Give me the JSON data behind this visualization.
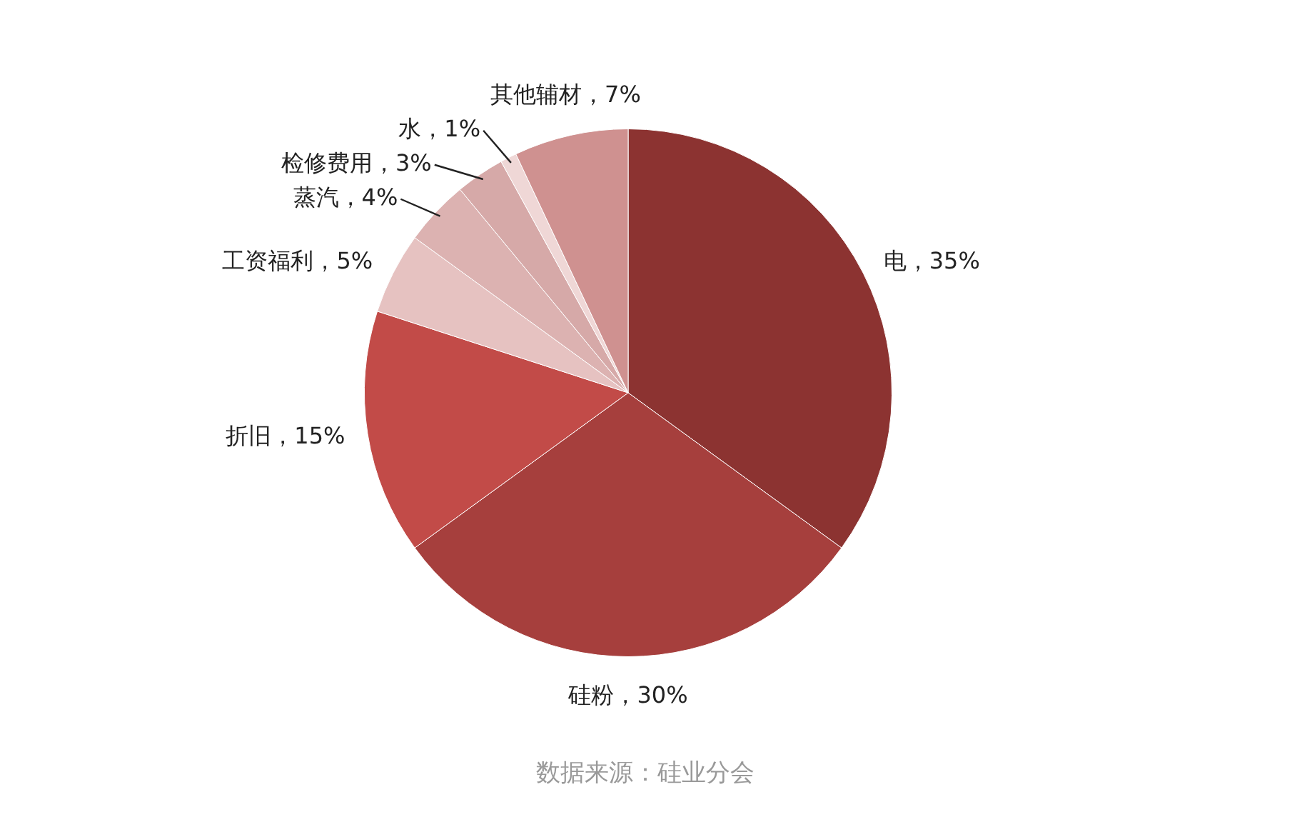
{
  "chart_data": {
    "type": "pie",
    "categories": [
      "电",
      "硅粉",
      "折旧",
      "工资福利",
      "蒸汽",
      "检修费用",
      "水",
      "其他辅材"
    ],
    "values": [
      35,
      30,
      15,
      5,
      4,
      3,
      1,
      7
    ],
    "value_labels": [
      "35%",
      "30%",
      "15%",
      "5%",
      "4%",
      "3%",
      "1%",
      "7%"
    ],
    "colors": [
      "#8c3331",
      "#a63f3d",
      "#c24b48",
      "#e6c2c1",
      "#dcb2b1",
      "#d6a9a8",
      "#efd7d6",
      "#cf9190"
    ],
    "legend": false,
    "annotations": [
      "数据来源：硅业分会"
    ]
  }
}
